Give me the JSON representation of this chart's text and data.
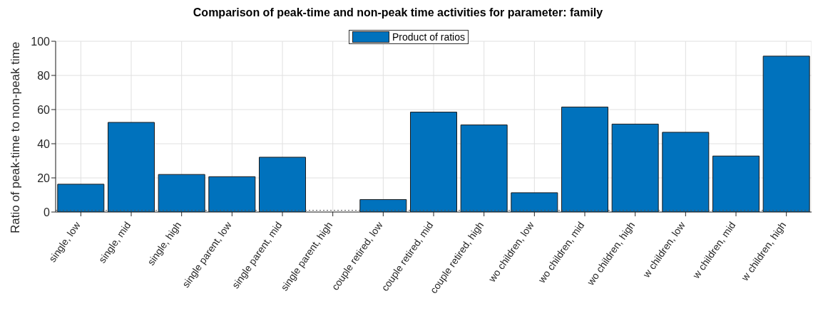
{
  "chart_data": {
    "type": "bar",
    "title": "Comparison of peak-time and non-peak time activities for parameter: family",
    "ylabel": "Ratio of peak-time to non-peak time",
    "categories": [
      "single, low",
      "single, mid",
      "single, high",
      "single parent, low",
      "single parent, mid",
      "single parent, high",
      "couple retired, low",
      "couple retired, mid",
      "couple retired, high",
      "wo children, low",
      "wo children, mid",
      "wo children, high",
      "w children, low",
      "w children, mid",
      "w children, high"
    ],
    "series": [
      {
        "name": "Product of ratios",
        "color": "#0072bd",
        "values": [
          16.3,
          52.5,
          22,
          20.7,
          32.1,
          0,
          7.3,
          58.5,
          51,
          11.3,
          61.5,
          51.5,
          46.7,
          32.8,
          91.3
        ]
      }
    ],
    "ylim": [
      0,
      100
    ],
    "yticks": [
      0,
      20,
      40,
      60,
      80,
      100
    ],
    "grid": true,
    "legend": "top",
    "ref_lines": [
      {
        "axis": "y",
        "value": 1,
        "color": "#555555",
        "line_style": "dotted"
      }
    ]
  }
}
